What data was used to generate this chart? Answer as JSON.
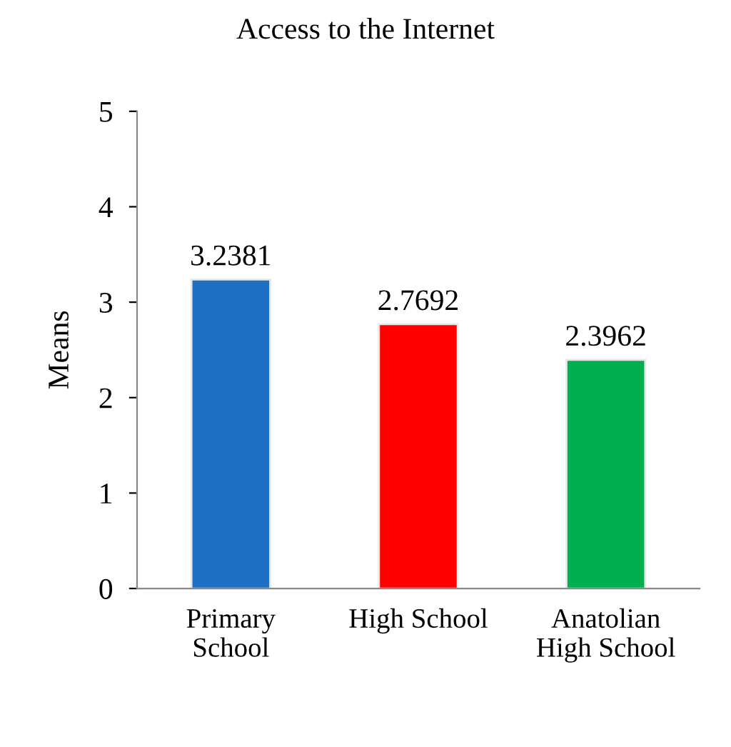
{
  "chart_data": {
    "type": "bar",
    "title": "Access to the Internet",
    "ylabel": "Means",
    "categories": [
      "Primary\nSchool",
      "High School",
      "Anatolian\nHigh School"
    ],
    "values": [
      3.2381,
      2.7692,
      2.3962
    ],
    "colors": [
      "#1f6fc5",
      "#ff0000",
      "#00b050"
    ],
    "ylim": [
      0,
      5
    ],
    "yticks": [
      0,
      1,
      2,
      3,
      4,
      5
    ],
    "data_labels": true,
    "grid": false,
    "legend": false
  }
}
